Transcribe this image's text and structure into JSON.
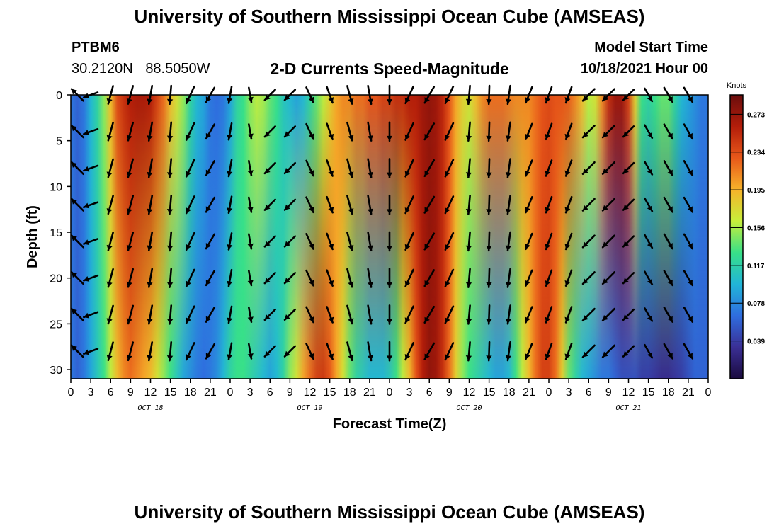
{
  "title": "University of Southern Mississippi Ocean Cube (AMSEAS)",
  "station": {
    "name": "PTBM6",
    "lat": "30.2120N",
    "lon": "88.5050W"
  },
  "model": {
    "start_label": "Model Start Time",
    "start_value": "10/18/2021 Hour 00"
  },
  "chart_data": {
    "type": "heatmap",
    "title": "2-D Currents Speed-Magnitude",
    "xlabel": "Forecast Time(Z)",
    "ylabel": "Depth (ft)",
    "x_ticks": [
      "0",
      "3",
      "6",
      "9",
      "12",
      "15",
      "18",
      "21",
      "0",
      "3",
      "6",
      "9",
      "12",
      "15",
      "18",
      "21",
      "0",
      "3",
      "6",
      "9",
      "12",
      "15",
      "18",
      "21",
      "0",
      "3",
      "6",
      "9",
      "12",
      "15",
      "18",
      "21",
      "0"
    ],
    "x_hours_range": [
      0,
      96
    ],
    "date_labels": [
      {
        "label": "OCT 18",
        "hour": 12
      },
      {
        "label": "OCT 19",
        "hour": 36
      },
      {
        "label": "OCT 20",
        "hour": 60
      },
      {
        "label": "OCT 21",
        "hour": 84
      }
    ],
    "y_ticks": [
      0,
      5,
      10,
      15,
      20,
      25,
      30
    ],
    "ylim": [
      0,
      31
    ],
    "y_inverted": true,
    "colorbar": {
      "unit": "Knots",
      "ticks": [
        "0.273",
        "0.234",
        "0.195",
        "0.156",
        "0.117",
        "0.078",
        "0.039"
      ],
      "range": [
        0,
        0.293
      ],
      "colors": [
        "#1a0a3e",
        "#3a2f95",
        "#2f6ddf",
        "#21b5d8",
        "#38e088",
        "#c8ee3a",
        "#f7b22a",
        "#e8581a",
        "#b31d0a",
        "#6a0d0d"
      ]
    },
    "speed_profile": {
      "hours": [
        0,
        1,
        2,
        3,
        4,
        5,
        6,
        7,
        8,
        9,
        10,
        11,
        12,
        13,
        14,
        15,
        16,
        17,
        18,
        19,
        20,
        21,
        22,
        23,
        24,
        25,
        26,
        27,
        28,
        29,
        30,
        31,
        32,
        33,
        34,
        35,
        36,
        37,
        38,
        39,
        40,
        41,
        42,
        43,
        44,
        45,
        46,
        47,
        48,
        49,
        50,
        51,
        52,
        53,
        54,
        55,
        56,
        57,
        58,
        59,
        60,
        61,
        62,
        63,
        64,
        65,
        66,
        67,
        68,
        69,
        70,
        71,
        72,
        73,
        74,
        75,
        76,
        77,
        78,
        79,
        80,
        81,
        82,
        83,
        84,
        85,
        86,
        87,
        88,
        89,
        90,
        91,
        92,
        93,
        94,
        95,
        96
      ],
      "surface": [
        0.07,
        0.06,
        0.07,
        0.1,
        0.12,
        0.15,
        0.19,
        0.235,
        0.25,
        0.26,
        0.265,
        0.265,
        0.26,
        0.24,
        0.22,
        0.19,
        0.17,
        0.15,
        0.12,
        0.1,
        0.09,
        0.07,
        0.065,
        0.07,
        0.09,
        0.12,
        0.13,
        0.15,
        0.16,
        0.155,
        0.14,
        0.13,
        0.11,
        0.1,
        0.09,
        0.1,
        0.12,
        0.14,
        0.16,
        0.18,
        0.2,
        0.21,
        0.21,
        0.22,
        0.22,
        0.23,
        0.23,
        0.24,
        0.24,
        0.25,
        0.25,
        0.26,
        0.26,
        0.27,
        0.275,
        0.27,
        0.255,
        0.23,
        0.2,
        0.18,
        0.17,
        0.19,
        0.21,
        0.22,
        0.22,
        0.22,
        0.215,
        0.21,
        0.21,
        0.21,
        0.22,
        0.23,
        0.235,
        0.23,
        0.23,
        0.225,
        0.21,
        0.19,
        0.16,
        0.17,
        0.21,
        0.25,
        0.27,
        0.27,
        0.24,
        0.18,
        0.13,
        0.12,
        0.13,
        0.14,
        0.14,
        0.12,
        0.1,
        0.09,
        0.08,
        0.07,
        0.07
      ],
      "bottom": [
        0.07,
        0.06,
        0.07,
        0.09,
        0.11,
        0.13,
        0.16,
        0.19,
        0.21,
        0.22,
        0.21,
        0.2,
        0.19,
        0.17,
        0.15,
        0.13,
        0.11,
        0.09,
        0.08,
        0.07,
        0.065,
        0.07,
        0.08,
        0.1,
        0.12,
        0.13,
        0.13,
        0.12,
        0.11,
        0.1,
        0.09,
        0.1,
        0.12,
        0.15,
        0.17,
        0.2,
        0.22,
        0.24,
        0.245,
        0.23,
        0.2,
        0.17,
        0.14,
        0.12,
        0.11,
        0.1,
        0.1,
        0.1,
        0.11,
        0.13,
        0.16,
        0.19,
        0.23,
        0.26,
        0.275,
        0.27,
        0.25,
        0.22,
        0.18,
        0.15,
        0.13,
        0.12,
        0.11,
        0.1,
        0.09,
        0.09,
        0.1,
        0.13,
        0.16,
        0.19,
        0.22,
        0.24,
        0.24,
        0.22,
        0.18,
        0.14,
        0.12,
        0.1,
        0.09,
        0.08,
        0.07,
        0.07,
        0.06,
        0.05,
        0.05,
        0.05,
        0.04,
        0.04,
        0.035,
        0.03,
        0.03,
        0.035,
        0.04,
        0.05,
        0.06,
        0.06,
        0.06
      ]
    },
    "vector_depths_ft": [
      0,
      4,
      8,
      12,
      16,
      20,
      24,
      28
    ],
    "vectors": [
      {
        "hour": 1,
        "dir_deg": 135,
        "len": 0.9
      },
      {
        "hour": 3,
        "dir_deg": 200,
        "len": 0.8
      },
      {
        "hour": 6,
        "dir_deg": 255,
        "len": 1.0
      },
      {
        "hour": 9,
        "dir_deg": 255,
        "len": 1.0
      },
      {
        "hour": 12,
        "dir_deg": 260,
        "len": 1.0
      },
      {
        "hour": 15,
        "dir_deg": 265,
        "len": 1.0
      },
      {
        "hour": 18,
        "dir_deg": 245,
        "len": 1.0
      },
      {
        "hour": 21,
        "dir_deg": 240,
        "len": 0.9
      },
      {
        "hour": 24,
        "dir_deg": 260,
        "len": 0.9
      },
      {
        "hour": 27,
        "dir_deg": 280,
        "len": 0.8
      },
      {
        "hour": 30,
        "dir_deg": 225,
        "len": 0.8
      },
      {
        "hour": 33,
        "dir_deg": 225,
        "len": 0.8
      },
      {
        "hour": 36,
        "dir_deg": 295,
        "len": 0.9
      },
      {
        "hour": 39,
        "dir_deg": 290,
        "len": 0.9
      },
      {
        "hour": 42,
        "dir_deg": 285,
        "len": 1.0
      },
      {
        "hour": 45,
        "dir_deg": 280,
        "len": 1.0
      },
      {
        "hour": 48,
        "dir_deg": 270,
        "len": 1.0
      },
      {
        "hour": 51,
        "dir_deg": 245,
        "len": 1.0
      },
      {
        "hour": 54,
        "dir_deg": 240,
        "len": 1.0
      },
      {
        "hour": 57,
        "dir_deg": 245,
        "len": 1.0
      },
      {
        "hour": 60,
        "dir_deg": 265,
        "len": 1.0
      },
      {
        "hour": 63,
        "dir_deg": 268,
        "len": 1.0
      },
      {
        "hour": 66,
        "dir_deg": 262,
        "len": 1.0
      },
      {
        "hour": 69,
        "dir_deg": 248,
        "len": 0.9
      },
      {
        "hour": 72,
        "dir_deg": 250,
        "len": 0.9
      },
      {
        "hour": 75,
        "dir_deg": 250,
        "len": 0.9
      },
      {
        "hour": 78,
        "dir_deg": 225,
        "len": 0.9
      },
      {
        "hour": 81,
        "dir_deg": 225,
        "len": 0.9
      },
      {
        "hour": 84,
        "dir_deg": 225,
        "len": 0.8
      },
      {
        "hour": 87,
        "dir_deg": 300,
        "len": 0.8
      },
      {
        "hour": 90,
        "dir_deg": 300,
        "len": 0.9
      },
      {
        "hour": 93,
        "dir_deg": 300,
        "len": 0.9
      }
    ]
  }
}
